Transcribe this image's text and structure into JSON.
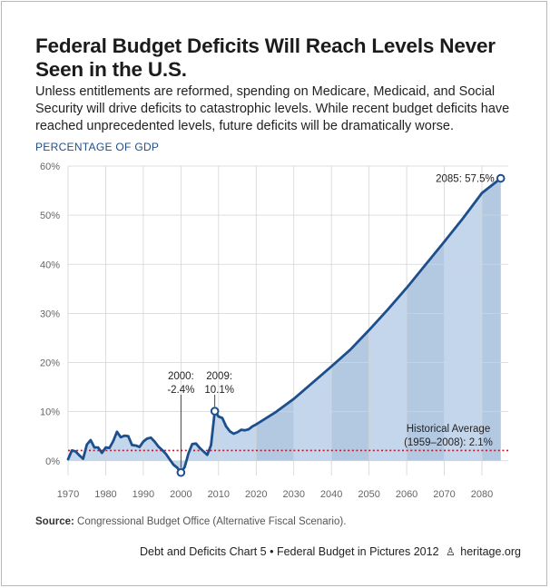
{
  "header": {
    "title": "Federal Budget Deficits Will Reach Levels Never Seen in the U.S.",
    "subtitle": "Unless entitlements are reformed, spending on Medicare, Medicaid, and Social Security will drive deficits to catastrophic levels. While recent budget deficits have reached unprecedented levels, future deficits will be dramatically worse."
  },
  "footer": {
    "source_label": "Source:",
    "source_text": "Congressional Budget Office (Alternative Fiscal Scenario).",
    "credit": "Debt and Deficits Chart 5 • Federal Budget in Pictures 2012",
    "site": "heritage.org",
    "lamp_icon": "lamp-icon"
  },
  "chart_data": {
    "type": "area",
    "ylabel": "PERCENTAGE OF GDP",
    "xlabel": "",
    "xlim": [
      1970,
      2087
    ],
    "ylim": [
      -3,
      60
    ],
    "x_ticks": [
      1970,
      1980,
      1990,
      2000,
      2010,
      2020,
      2030,
      2040,
      2050,
      2060,
      2070,
      2080
    ],
    "y_ticks": [
      0,
      10,
      20,
      30,
      40,
      50,
      60
    ],
    "y_tick_labels": [
      "0%",
      "10%",
      "20%",
      "30%",
      "40%",
      "50%",
      "60%"
    ],
    "grid": true,
    "colors": {
      "line": "#1d4f8c",
      "fill": "#c4d6eb",
      "band": "#b3c9e2",
      "reference": "#c0182f"
    },
    "series": [
      {
        "x": [
          1970,
          1971,
          1972,
          1973,
          1974,
          1975,
          1976,
          1977,
          1978,
          1979,
          1980,
          1981,
          1982,
          1983,
          1984,
          1985,
          1986,
          1987,
          1988,
          1989,
          1990,
          1991,
          1992,
          1993,
          1994,
          1995,
          1996,
          1997,
          1998,
          1999,
          2000,
          2001,
          2002,
          2003,
          2004,
          2005,
          2006,
          2007,
          2008,
          2009,
          2010,
          2011,
          2012,
          2013,
          2014,
          2015,
          2016,
          2017,
          2018,
          2019,
          2020,
          2025,
          2030,
          2035,
          2040,
          2045,
          2050,
          2055,
          2060,
          2065,
          2070,
          2075,
          2080,
          2085
        ],
        "values": [
          0.3,
          2.1,
          1.9,
          1.1,
          0.4,
          3.3,
          4.2,
          2.7,
          2.7,
          1.6,
          2.7,
          2.6,
          4.0,
          5.9,
          4.8,
          5.1,
          5.0,
          3.2,
          3.1,
          2.8,
          3.9,
          4.5,
          4.7,
          3.9,
          2.9,
          2.2,
          1.4,
          0.3,
          -0.8,
          -1.4,
          -2.4,
          -1.3,
          1.5,
          3.4,
          3.5,
          2.6,
          1.9,
          1.2,
          3.2,
          10.1,
          9.0,
          8.7,
          7.0,
          6.0,
          5.5,
          5.8,
          6.3,
          6.2,
          6.4,
          7.0,
          7.4,
          9.8,
          12.6,
          15.9,
          19.2,
          22.6,
          26.6,
          30.8,
          35.2,
          39.9,
          44.6,
          49.4,
          54.5,
          57.5
        ]
      }
    ],
    "reference_line": {
      "value": 2.1,
      "label_line1": "Historical Average",
      "label_line2": "(1959–2008): 2.1%"
    },
    "annotations": [
      {
        "x": 2000,
        "y": -2.4,
        "line1": "2000:",
        "line2": "-2.4%"
      },
      {
        "x": 2009,
        "y": 10.1,
        "line1": "2009:",
        "line2": "10.1%"
      },
      {
        "x": 2085,
        "y": 57.5,
        "line1": "2085: 57.5%",
        "line2": ""
      }
    ]
  }
}
